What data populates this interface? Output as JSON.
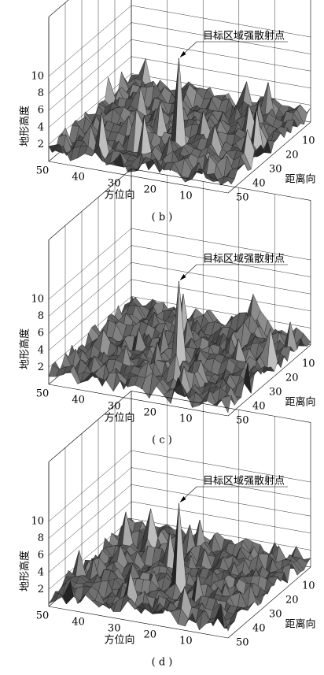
{
  "panels": [
    {
      "caption": "( b )",
      "annotation": "目标区域强散射点",
      "z_label": "地形高度",
      "x_label": "方位向",
      "y_label": "距离向",
      "zticks": [
        2,
        4,
        6,
        8,
        10
      ],
      "xticks": [
        50,
        40,
        30,
        20,
        10
      ],
      "yticks": [
        10,
        20,
        30,
        40,
        50
      ]
    },
    {
      "caption": "( c )",
      "annotation": "目标区域强散射点",
      "z_label": "地形高度",
      "x_label": "方位向",
      "y_label": "距离向",
      "zticks": [
        2,
        4,
        6,
        8,
        10
      ],
      "xticks": [
        50,
        40,
        30,
        20,
        10
      ],
      "yticks": [
        10,
        20,
        30,
        40,
        50
      ]
    },
    {
      "caption": "( d )",
      "annotation": "目标区域强散射点",
      "z_label": "地形高度",
      "x_label": "方位向",
      "y_label": "距离向",
      "zticks": [
        2,
        4,
        6,
        8,
        10
      ],
      "xticks": [
        50,
        40,
        30,
        20,
        10
      ],
      "yticks": [
        10,
        20,
        30,
        40,
        50
      ]
    }
  ]
}
